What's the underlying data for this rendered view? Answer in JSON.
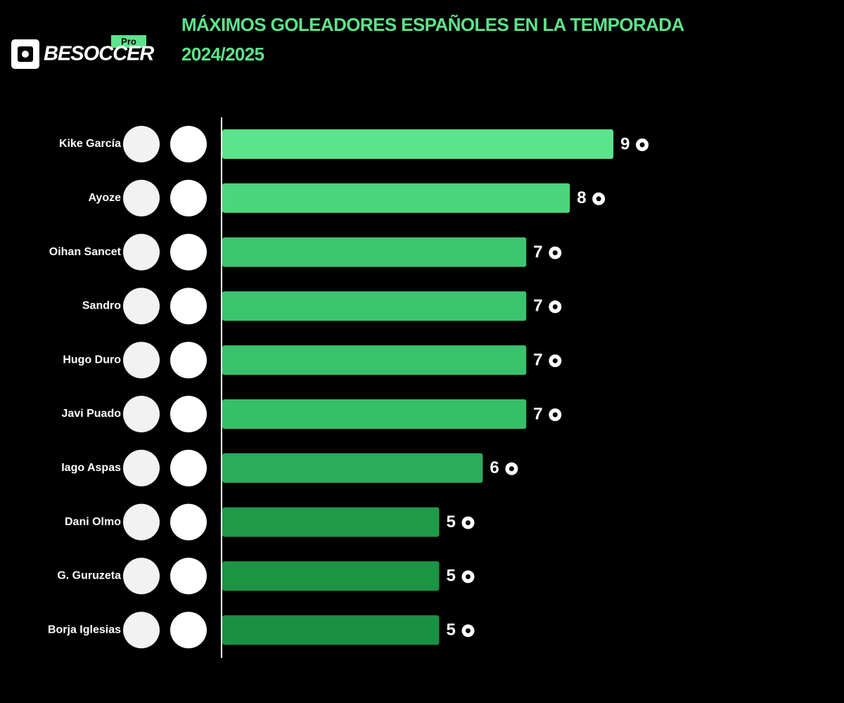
{
  "logo": {
    "name": "BESOCCER",
    "badge": "Pro"
  },
  "chart_data": {
    "type": "bar",
    "orientation": "horizontal",
    "title": "MÁXIMOS GOLEADORES ESPAÑOLES EN LA TEMPORADA 2024/2025",
    "categories": [
      "Kike García",
      "Ayoze",
      "Oihan Sancet",
      "Sandro",
      "Hugo Duro",
      "Javi Puado",
      "Iago Aspas",
      "Dani Olmo",
      "G. Guruzeta",
      "Borja Iglesias"
    ],
    "values": [
      9,
      8,
      7,
      7,
      7,
      7,
      6,
      5,
      5,
      5
    ],
    "colors": [
      "#5be48b",
      "#4dd57e",
      "#3dc66f",
      "#3bc46d",
      "#39c26b",
      "#36bf68",
      "#2aad5b",
      "#1f9b4a",
      "#1b9444",
      "#1a9142"
    ]
  }
}
